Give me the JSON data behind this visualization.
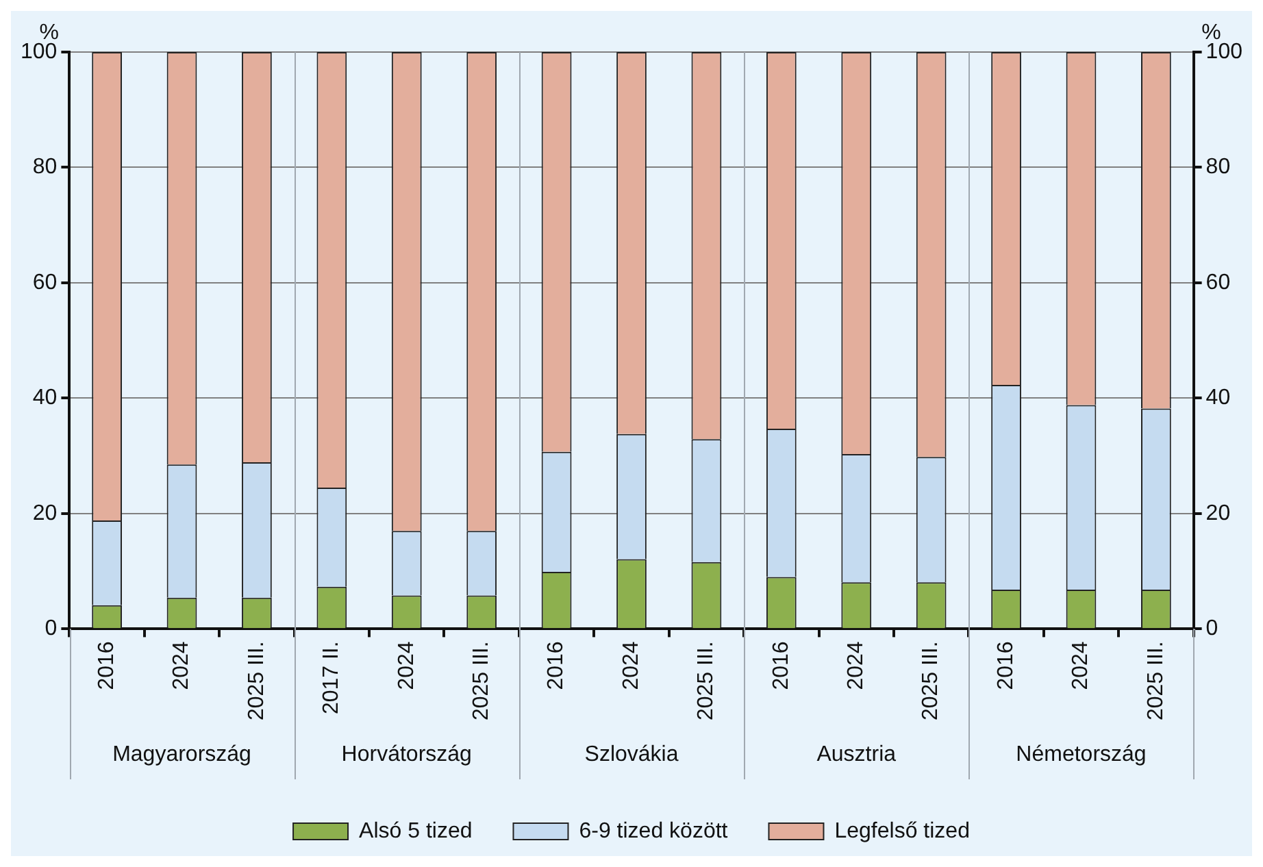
{
  "chart_data": {
    "type": "bar",
    "stacked": true,
    "ylabel": "%",
    "y2label": "%",
    "categories": [
      "2016",
      "2024",
      "2025 III.",
      "2017 II.",
      "2024",
      "2025 III.",
      "2016",
      "2024",
      "2025 III.",
      "2016",
      "2024",
      "2025 III.",
      "2016",
      "2024",
      "2025 III."
    ],
    "annotations": [
      "Magyarország",
      "Horvátország",
      "Szlovákia",
      "Ausztria",
      "Németország"
    ],
    "series": [
      {
        "name": "Alsó 5 tized",
        "color": "#8db04e",
        "values": [
          4.1,
          5.4,
          5.4,
          7.3,
          5.8,
          5.8,
          9.9,
          12.1,
          11.6,
          9.0,
          8.1,
          8.1,
          6.8,
          6.8,
          6.8
        ]
      },
      {
        "name": "6-9 tized között",
        "color": "#c5dbf0",
        "values": [
          14.7,
          23.1,
          23.5,
          17.2,
          11.2,
          11.2,
          20.8,
          21.7,
          21.3,
          25.7,
          22.2,
          21.7,
          35.5,
          32.0,
          31.4
        ]
      },
      {
        "name": "Legfelső tized",
        "color": "#e3ae9c",
        "values": [
          81.2,
          71.5,
          71.1,
          75.5,
          83.0,
          83.0,
          69.3,
          66.2,
          67.1,
          65.3,
          69.7,
          70.2,
          57.7,
          61.2,
          61.8
        ]
      }
    ],
    "ylim": [
      0,
      100
    ],
    "yticks": [
      0,
      20,
      40,
      60,
      80,
      100
    ],
    "y2lim": [
      0,
      100
    ],
    "y2ticks": [
      0,
      20,
      40,
      60,
      80,
      100
    ],
    "grid": "y",
    "legend": "bottom"
  }
}
